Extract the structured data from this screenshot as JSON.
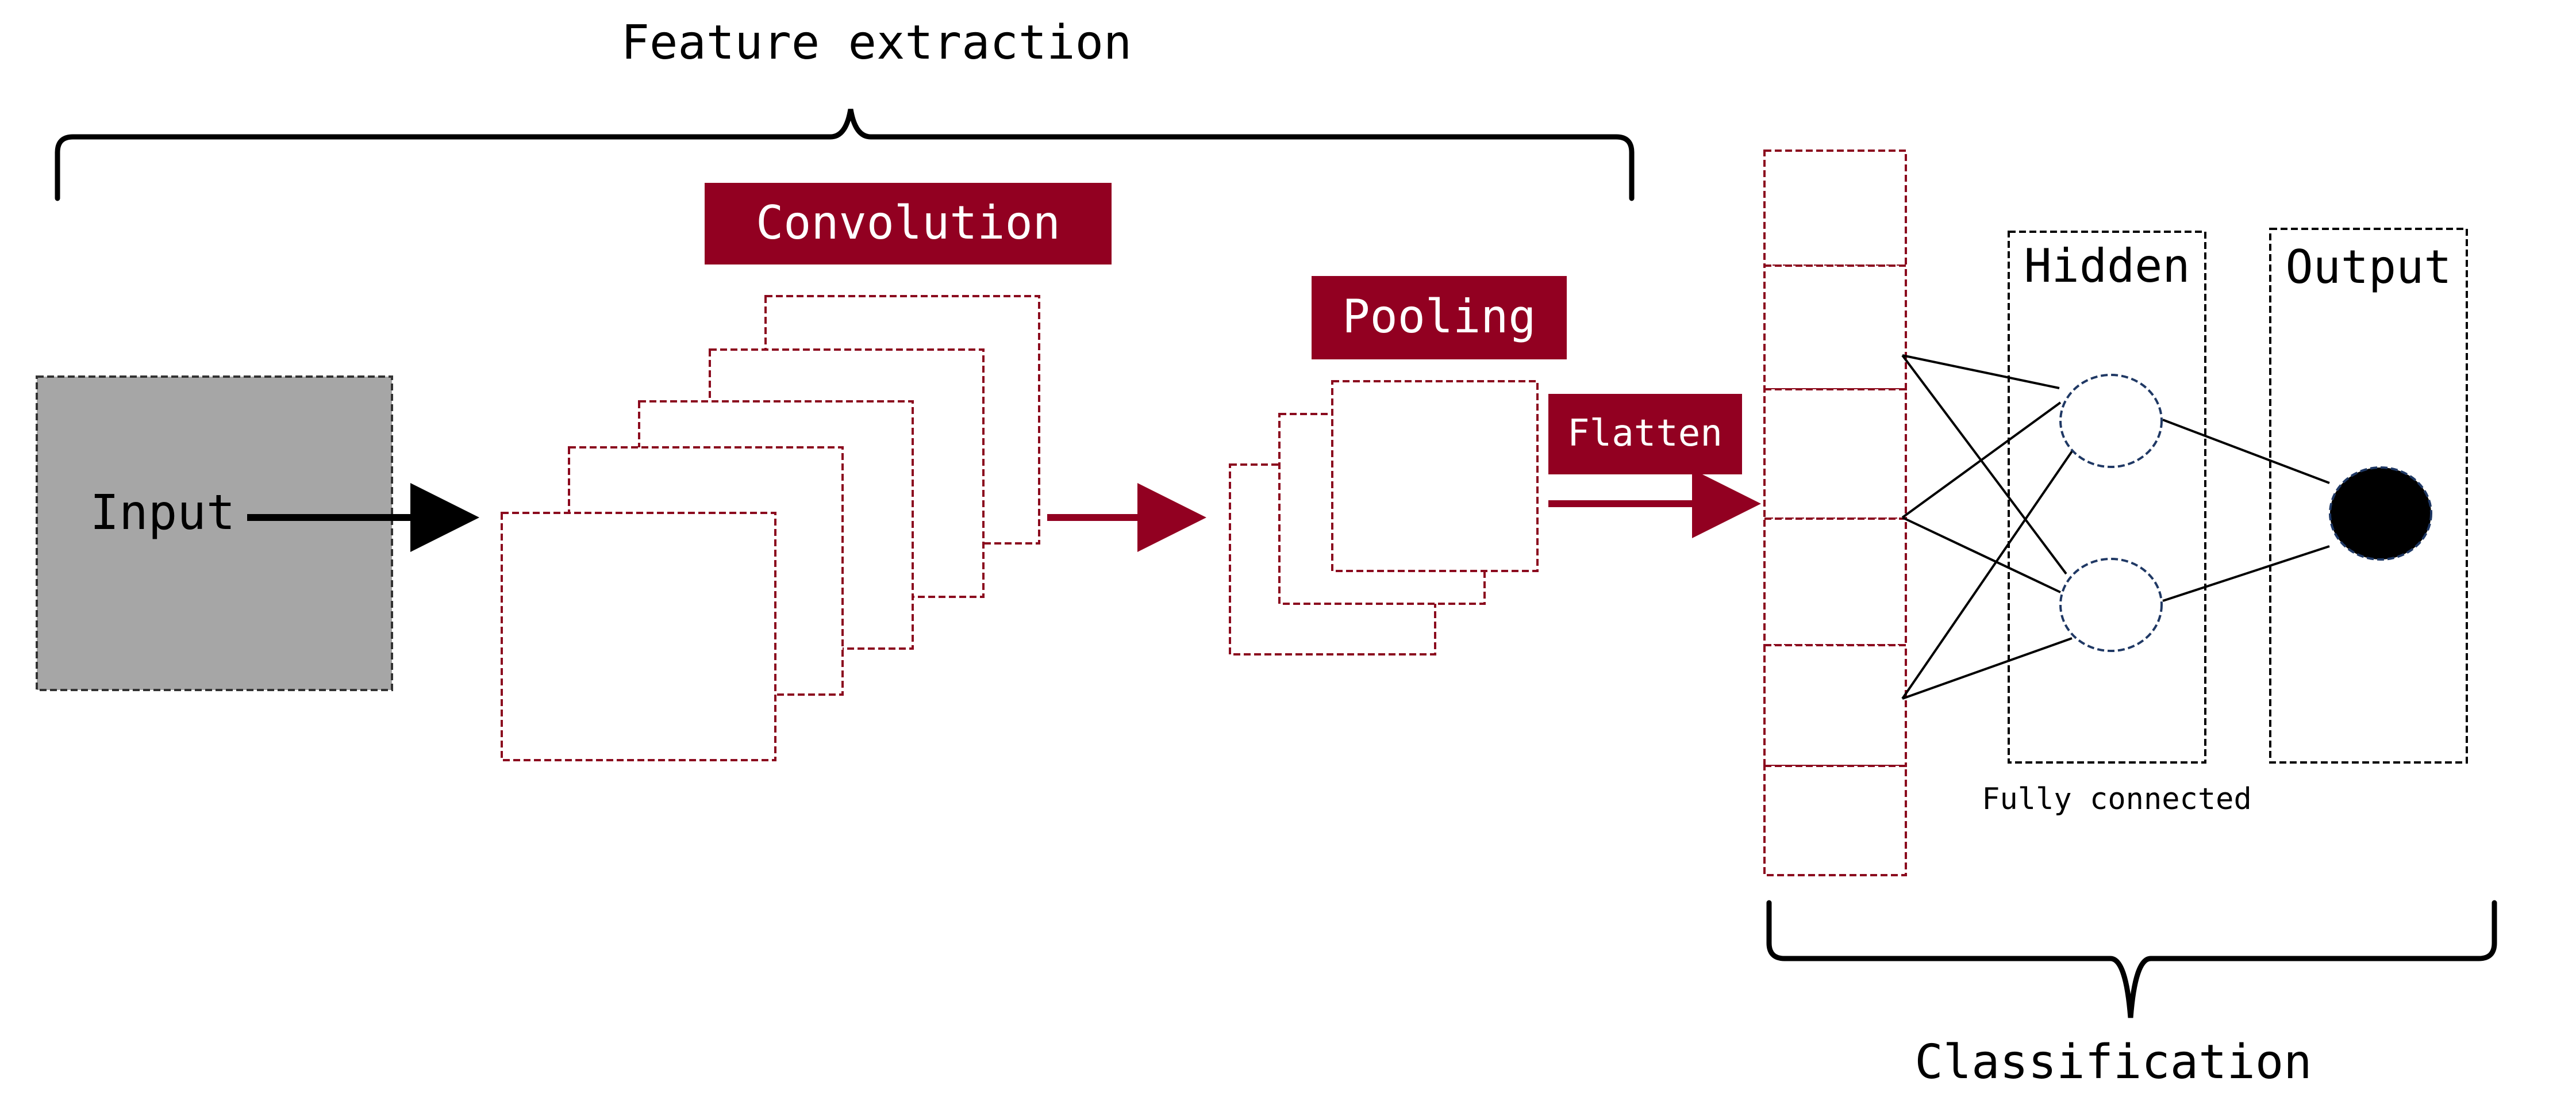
{
  "labels": {
    "feature_extraction": "Feature extraction",
    "classification": "Classification",
    "input": "Input",
    "convolution": "Convolution",
    "pooling": "Pooling",
    "flatten": "Flatten",
    "hidden": "Hidden",
    "output": "Output",
    "fully_connected": "Fully connected"
  },
  "colors": {
    "accent_red": "#920021",
    "dashed_red": "#8b0a1e",
    "input_gray": "#a6a6a6",
    "hidden_node_border": "#1f3864",
    "black": "#000000"
  },
  "structure": {
    "convolution_feature_maps": 5,
    "pooling_maps": 3,
    "flattened_units": 6,
    "hidden_nodes": 2,
    "output_nodes": 1
  }
}
